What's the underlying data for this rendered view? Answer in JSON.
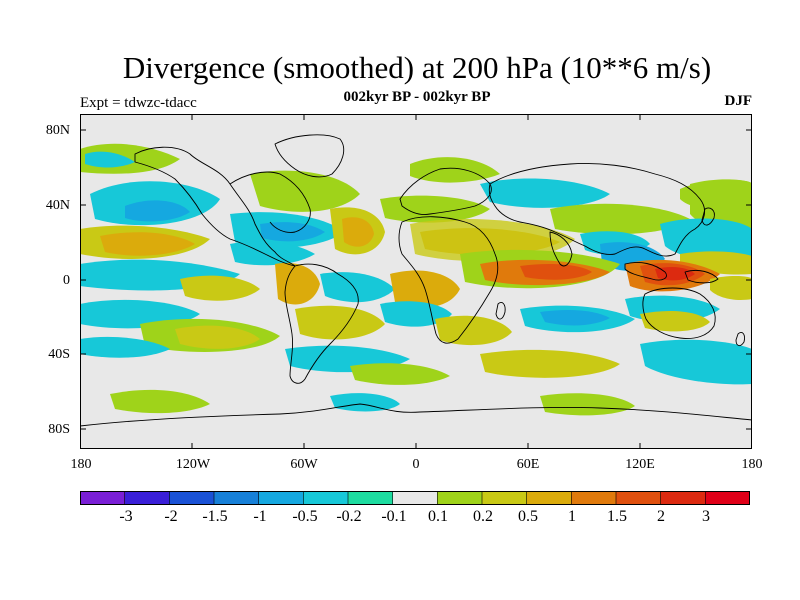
{
  "title": "Divergence (smoothed) at 200 hPa (10**6 m/s)",
  "subtitle": "002kyr BP - 002kyr BP",
  "expt_label": "Expt = tdwzc-tdacc",
  "season": "DJF",
  "lat_labels": [
    "80N",
    "40N",
    "0",
    "40S",
    "80S"
  ],
  "lon_labels": [
    "180",
    "120W",
    "60W",
    "0",
    "60E",
    "120E",
    "180"
  ],
  "colorbar": {
    "levels": [
      "-3",
      "-2",
      "-1.5",
      "-1",
      "-0.5",
      "-0.2",
      "-0.1",
      "0.1",
      "0.2",
      "0.5",
      "1",
      "1.5",
      "2",
      "3"
    ],
    "colors": [
      "#7a1fd6",
      "#3a1fd8",
      "#1a52d6",
      "#1780d8",
      "#15a8e0",
      "#17c8d8",
      "#1ddca0",
      "#e8e8e8",
      "#9fd31a",
      "#c9c915",
      "#dbab0c",
      "#e07a0c",
      "#e0500e",
      "#dc2a10",
      "#e00018"
    ]
  },
  "colors": {
    "map_background": "#e8e8e8",
    "coastline": "#000000"
  }
}
